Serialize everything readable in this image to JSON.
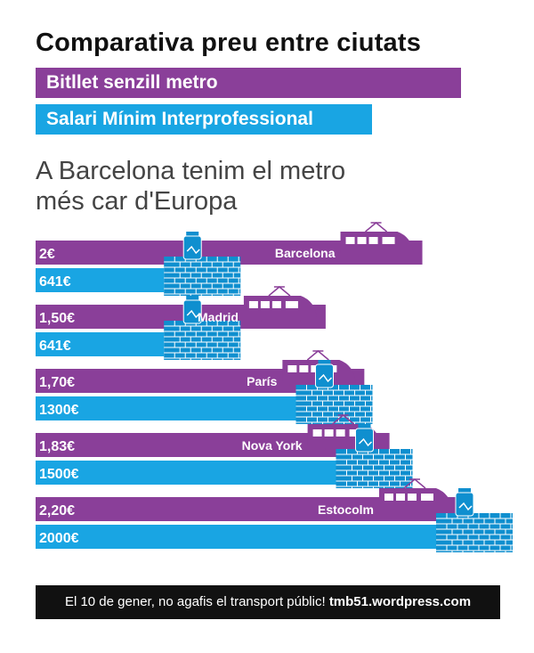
{
  "title": "Comparativa preu entre ciutats",
  "legend": {
    "metro": "Bitllet senzill metro",
    "salari": "Salari Mínim Interprofessional"
  },
  "subtitle": {
    "line1": "A Barcelona tenim el metro",
    "line2": "més car d'Europa"
  },
  "colors": {
    "metro": "#8a3f99",
    "salari": "#19a5e3",
    "brick": "#0f8fcf",
    "brick_line": "#ffffff",
    "dark": "#111111"
  },
  "chart_data": {
    "type": "bar",
    "categories": [
      "Barcelona",
      "Madrid",
      "París",
      "Nova York",
      "Estocolm"
    ],
    "series": [
      {
        "name": "Bitllet senzill metro",
        "values": [
          2.0,
          1.5,
          1.7,
          1.83,
          2.2
        ],
        "labels": [
          "2€",
          "1,50€",
          "1,70€",
          "1,83€",
          "2,20€"
        ]
      },
      {
        "name": "Salari Mínim Interprofessional",
        "values": [
          641,
          641,
          1300,
          1500,
          2000
        ],
        "labels": [
          "641€",
          "641€",
          "1300€",
          "1500€",
          "2000€"
        ]
      }
    ]
  },
  "footer": {
    "text": "El 10 de gener, no agafis el transport públic!",
    "link": "tmb51.wordpress.com"
  }
}
